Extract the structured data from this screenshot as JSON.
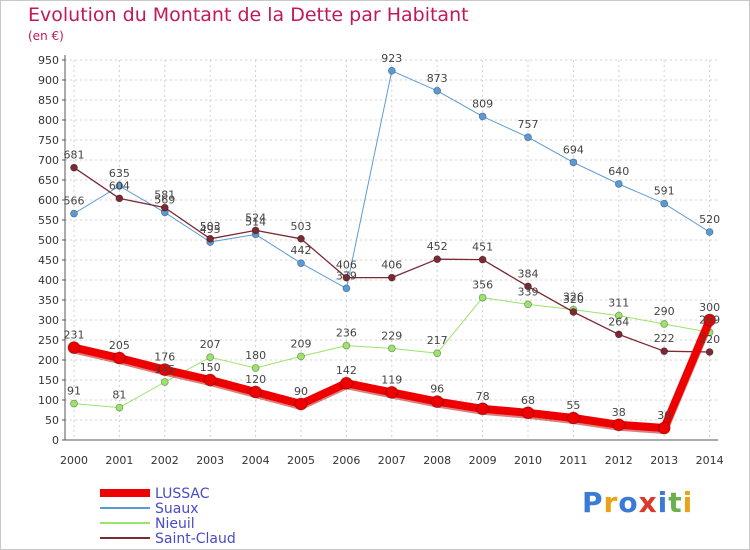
{
  "header": {
    "title": "Evolution du Montant de la Dette par Habitant",
    "subtitle": "(en €)"
  },
  "brand": {
    "letters": [
      "P",
      "r",
      "o",
      "x",
      "i",
      "t",
      "i"
    ],
    "colors": [
      "#3a7bd5",
      "#e8a317",
      "#3a7bd5",
      "#d93a2b",
      "#3a7bd5",
      "#6ab04c",
      "#e8a317"
    ]
  },
  "chart_data": {
    "type": "line",
    "x": [
      "2000",
      "2001",
      "2002",
      "2003",
      "2004",
      "2005",
      "2006",
      "2007",
      "2008",
      "2009",
      "2010",
      "2011",
      "2012",
      "2013",
      "2014"
    ],
    "ylim": [
      0,
      950
    ],
    "yticks": [
      "0",
      "50",
      "100",
      "150",
      "200",
      "250",
      "300",
      "350",
      "400",
      "450",
      "500",
      "550",
      "600",
      "650",
      "700",
      "750",
      "800",
      "850",
      "900",
      "950"
    ],
    "grid": true,
    "legend_position": "bottom-left",
    "series": [
      {
        "name": "Suaux",
        "color": "#5b9bd5",
        "width": 1,
        "marker": 3.5,
        "values": [
          566,
          635,
          569,
          495,
          514,
          442,
          379,
          923,
          873,
          809,
          757,
          694,
          640,
          591,
          520
        ]
      },
      {
        "name": "Nieuil",
        "color": "#9be36b",
        "width": 1,
        "marker": 3.5,
        "values": [
          91,
          81,
          145,
          207,
          180,
          209,
          236,
          229,
          217,
          356,
          339,
          326,
          311,
          290,
          269
        ]
      },
      {
        "name": "Saint-Claud",
        "color": "#7b2a33",
        "width": 1.3,
        "marker": 3.5,
        "values": [
          681,
          604,
          581,
          503,
          524,
          503,
          406,
          406,
          452,
          451,
          384,
          320,
          264,
          222,
          220
        ]
      },
      {
        "name": "LUSSAC",
        "color": "#ee0000",
        "width": 8,
        "marker": 6,
        "values": [
          231,
          205,
          176,
          150,
          120,
          90,
          142,
          119,
          96,
          78,
          68,
          55,
          38,
          30,
          300
        ]
      }
    ]
  }
}
